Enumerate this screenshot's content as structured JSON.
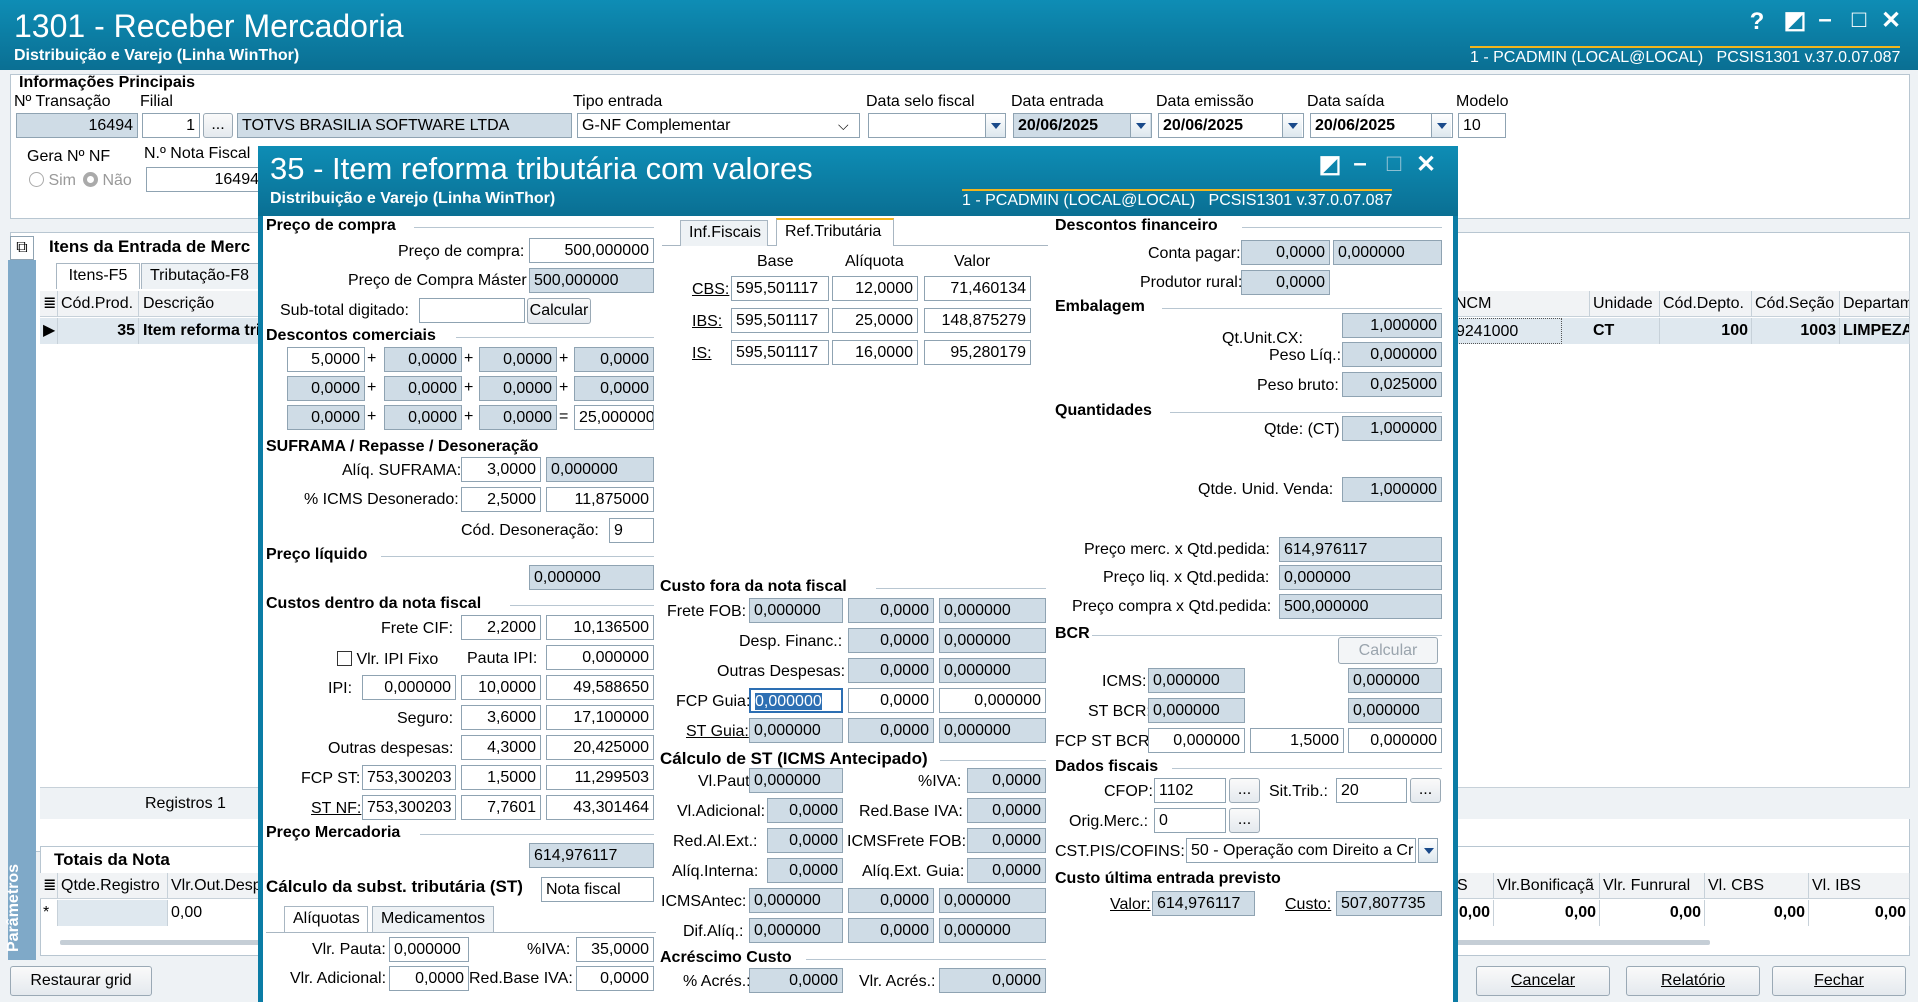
{
  "main": {
    "title": "1301 - Receber Mercadoria",
    "subtitle": "Distribuição e Varejo (Linha WinThor)",
    "user": "1 - PCADMIN (LOCAL@LOCAL)",
    "version": "PCSIS1301  v.37.0.07.087",
    "help": "?"
  },
  "info": {
    "section": "Informações Principais",
    "lbl_transacao": "Nº Transação",
    "lbl_filial": "Filial",
    "transacao": "16494",
    "filial": "1",
    "fornecedor": "TOTVS BRASILIA SOFTWARE LTDA",
    "lbl_tipo": "Tipo entrada",
    "tipo": "G-NF Complementar",
    "lbl_selo": "Data selo fiscal",
    "lbl_entrada": "Data entrada",
    "entrada": "20/06/2025",
    "lbl_emissao": "Data emissão",
    "emissao": "20/06/2025",
    "lbl_saida": "Data saída",
    "saida": "20/06/2025",
    "lbl_modelo": "Modelo",
    "modelo": "10",
    "lbl_gera": "Gera Nº NF",
    "sim": "Sim",
    "nao": "Não",
    "lbl_nf": "N.º Nota Fiscal",
    "nf": "16494"
  },
  "itens": {
    "title": "Itens da Entrada de Merc",
    "tab1": "Itens-F5",
    "tab2": "Tributação-F8",
    "col_cod": "Cód.Prod.",
    "col_desc": "Descrição",
    "row_cod": "35",
    "row_desc": "Item reforma tri",
    "registros": "Registros 1",
    "col_ncm": "NCM",
    "col_unidade": "Unidade",
    "col_depto": "Cód.Depto.",
    "col_secao": "Cód.Seção",
    "col_departam": "Departam",
    "row_ncm": "9241000",
    "row_unidade": "CT",
    "row_depto": "100",
    "row_secao": "1003",
    "row_departam": "LIMPEZA"
  },
  "totais": {
    "title": "Totais da Nota",
    "col_qtde": "Qtde.Registro",
    "col_vlr": "Vlr.Out.Desp",
    "row_star": "*",
    "row_vlr": "0,00",
    "col_s": "S",
    "col_bonif": "Vlr.Bonificaçã",
    "col_funrural": "Vlr. Funrural",
    "col_cbs": "Vl. CBS",
    "col_ibs": "Vl. IBS",
    "v0": "0,00",
    "v1": "0,00",
    "v2": "0,00",
    "v3": "0,00",
    "v4": "0,00"
  },
  "side_tab": "Parâmetros",
  "bottom": {
    "restaurar": "Restaurar grid",
    "cancelar": "Cancelar",
    "relatorio": "Relatório",
    "fechar": "Fechar"
  },
  "dlg": {
    "title": "35 - Item reforma tributária com valores",
    "subtitle": "Distribuição e Varejo (Linha WinThor)",
    "user": "1 - PCADMIN (LOCAL@LOCAL)",
    "version": "PCSIS1301  v.37.0.07.087"
  },
  "preco": {
    "section": "Preço de compra",
    "lbl_compra": "Preço de compra:",
    "compra": "500,000000",
    "lbl_master": "Preço de Compra Máster",
    "master": "500,000000",
    "lbl_subtotal": "Sub-total digitado:",
    "calcular": "Calcular"
  },
  "descom": {
    "section": "Descontos comerciais",
    "r1": [
      "5,0000",
      "0,0000",
      "0,0000",
      "0,0000"
    ],
    "r2": [
      "0,0000",
      "0,0000",
      "0,0000",
      "0,0000"
    ],
    "r3": [
      "0,0000",
      "0,0000",
      "0,0000",
      "25,000000"
    ],
    "plus": "+",
    "eq": "="
  },
  "suframa": {
    "section": "SUFRAMA / Repasse / Desoneração",
    "lbl_aliq": "Alíq. SUFRAMA:",
    "aliq": "3,0000",
    "aliq_v": "0,000000",
    "lbl_icms": "% ICMS Desonerado:",
    "icms": "2,5000",
    "icms_v": "11,875000",
    "lbl_cod": "Cód. Desoneração:",
    "cod": "9"
  },
  "liquido": {
    "section": "Preço líquido",
    "valor": "0,000000"
  },
  "custos": {
    "section": "Custos dentro da nota fiscal",
    "lbl_frete": "Frete CIF:",
    "frete": "2,2000",
    "frete_v": "10,136500",
    "lbl_ipifixo": "Vlr. IPI Fixo",
    "lbl_pauta": "Pauta IPI:",
    "pauta": "0,000000",
    "lbl_ipi": "IPI:",
    "ipi": "0,000000",
    "ipi_p": "10,0000",
    "ipi_v": "49,588650",
    "lbl_seguro": "Seguro:",
    "seguro": "3,6000",
    "seguro_v": "17,100000",
    "lbl_outras": "Outras despesas:",
    "outras": "4,3000",
    "outras_v": "20,425000",
    "lbl_fcpst": "FCP ST:",
    "fcpst": "753,300203",
    "fcpst_p": "1,5000",
    "fcpst_v": "11,299503",
    "lbl_stnf": "ST NF:",
    "stnf": "753,300203",
    "stnf_p": "7,7601",
    "stnf_v": "43,301464"
  },
  "pmerc": {
    "section": "Preço Mercadoria",
    "valor": "614,976117"
  },
  "calcst": {
    "section": "Cálculo da subst. tributária (ST)",
    "tipo": "Nota fiscal",
    "tab1": "Alíquotas",
    "tab2": "Medicamentos",
    "lbl_pauta": "Vlr. Pauta:",
    "pauta": "0,000000",
    "lbl_iva": "%IVA:",
    "iva": "35,0000",
    "lbl_adic": "Vlr. Adicional:",
    "adic": "0,0000",
    "lbl_redbase": "Red.Base IVA:",
    "redbase": "0,0000"
  },
  "reftrib": {
    "tab1": "Inf.Fiscais",
    "tab2": "Ref.Tributária",
    "h_base": "Base",
    "h_aliq": "Alíquota",
    "h_valor": "Valor",
    "rows": [
      {
        "lbl": "CBS:",
        "base": "595,501117",
        "aliq": "12,0000",
        "valor": "71,460134"
      },
      {
        "lbl": "IBS:",
        "base": "595,501117",
        "aliq": "25,0000",
        "valor": "148,875279"
      },
      {
        "lbl": "IS:",
        "base": "595,501117",
        "aliq": "16,0000",
        "valor": "95,280179"
      }
    ]
  },
  "fora": {
    "section": "Custo fora da nota fiscal",
    "lbl_frete": "Frete FOB:",
    "frete": "0,000000",
    "frete_p": "0,0000",
    "frete_v": "0,000000",
    "lbl_desp": "Desp. Financ.:",
    "desp_p": "0,0000",
    "desp_v": "0,000000",
    "lbl_outras": "Outras Despesas:",
    "outras_p": "0,0000",
    "outras_v": "0,000000",
    "lbl_fcp": "FCP Guia:",
    "fcp": "0,000000",
    "fcp_p": "0,0000",
    "fcp_v": "0,000000",
    "lbl_st": "ST Guia:",
    "st": "0,000000",
    "st_p": "0,0000",
    "st_v": "0,000000"
  },
  "antec": {
    "section": "Cálculo de ST (ICMS Antecipado)",
    "lbl_pauta": "Vl.Pauta:",
    "pauta": "0,000000",
    "lbl_iva": "%IVA:",
    "iva": "0,0000",
    "lbl_adic": "Vl.Adicional:",
    "adic": "0,0000",
    "lbl_redbase": "Red.Base IVA:",
    "redbase": "0,0000",
    "lbl_redal": "Red.Al.Ext.:",
    "redal": "0,0000",
    "lbl_icmsfrete": "ICMSFrete FOB:",
    "icmsfrete": "0,0000",
    "lbl_aliqint": "Alíq.Interna:",
    "aliqint": "0,0000",
    "lbl_aliqext": "Alíq.Ext. Guia:",
    "aliqext": "0,0000",
    "lbl_icmsantec": "ICMSAntec:",
    "icmsantec": "0,000000",
    "icmsantec_p": "0,0000",
    "icmsantec_v": "0,000000",
    "lbl_difaliq": "Dif.Alíq.:",
    "difaliq": "0,000000",
    "difaliq_p": "0,0000",
    "difaliq_v": "0,000000"
  },
  "acresc": {
    "section": "Acréscimo Custo",
    "lbl_pct": "% Acrés.:",
    "pct": "0,0000",
    "lbl_vlr": "Vlr. Acrés.:",
    "vlr": "0,0000"
  },
  "descfin": {
    "section": "Descontos financeiro",
    "lbl_conta": "Conta pagar:",
    "conta": "0,0000",
    "conta_v": "0,000000",
    "lbl_produtor": "Produtor rural:",
    "produtor": "0,0000"
  },
  "embalagem": {
    "section": "Embalagem",
    "lbl_qt": "Qt.Unit.CX:",
    "qt": "1,000000",
    "lbl_pesoliq": "Peso Líq.:",
    "pesoliq": "0,000000",
    "lbl_pesobruto": "Peso bruto:",
    "pesobruto": "0,025000"
  },
  "quant": {
    "section": "Quantidades",
    "lbl_qtde": "Qtde: (CT)",
    "qtde": "1,000000",
    "lbl_unid": "Qtde. Unid. Venda:",
    "unid": "1,000000",
    "lbl_merc": "Preço merc. x Qtd.pedida:",
    "merc": "614,976117",
    "lbl_liq": "Preço liq. x Qtd.pedida:",
    "liq": "0,000000",
    "lbl_compra": "Preço compra x Qtd.pedida:",
    "compra": "500,000000"
  },
  "bcr": {
    "section": "BCR",
    "calcular": "Calcular",
    "lbl_icms": "ICMS:",
    "icms": "0,000000",
    "icms_v": "0,000000",
    "lbl_stbcr": "ST BCR:",
    "stbcr": "0,000000",
    "stbcr_v": "0,000000",
    "lbl_fcp": "FCP ST BCR:",
    "fcp": "0,000000",
    "fcp_p": "1,5000",
    "fcp_v": "0,000000"
  },
  "fiscais": {
    "section": "Dados fiscais",
    "lbl_cfop": "CFOP:",
    "cfop": "1102",
    "lbl_sit": "Sit.Trib.:",
    "sit": "20",
    "lbl_orig": "Orig.Merc.:",
    "orig": "0",
    "lbl_cst": "CST.PIS/COFINS:",
    "cst": "50 - Operação com Direito a Cr",
    "dots": "..."
  },
  "ultima": {
    "section": "Custo última entrada previsto",
    "lbl_valor": "Valor:",
    "valor": "614,976117",
    "lbl_custo": "Custo:",
    "custo": "507,807735"
  }
}
